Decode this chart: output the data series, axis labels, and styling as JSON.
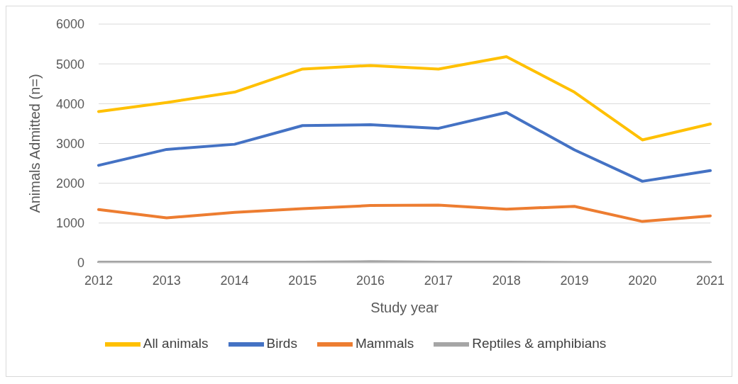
{
  "chart_data": {
    "type": "line",
    "xlabel": "Study year",
    "ylabel": "Animals Admitted (n=)",
    "categories": [
      "2012",
      "2013",
      "2014",
      "2015",
      "2016",
      "2017",
      "2018",
      "2019",
      "2020",
      "2021"
    ],
    "series": [
      {
        "name": "All animals",
        "color": "#ffc000",
        "values": [
          3800,
          4030,
          4290,
          4870,
          4960,
          4870,
          5180,
          4290,
          3090,
          3490
        ]
      },
      {
        "name": "Birds",
        "color": "#4472c4",
        "values": [
          2450,
          2850,
          2980,
          3450,
          3470,
          3380,
          3780,
          2840,
          2050,
          2320
        ]
      },
      {
        "name": "Mammals",
        "color": "#ed7d31",
        "values": [
          1340,
          1130,
          1270,
          1360,
          1440,
          1450,
          1350,
          1420,
          1040,
          1180
        ]
      },
      {
        "name": "Reptiles & amphibians",
        "color": "#a5a5a5",
        "values": [
          20,
          20,
          20,
          20,
          30,
          20,
          20,
          10,
          10,
          10
        ]
      }
    ],
    "ylim": [
      0,
      6000
    ],
    "yticks": [
      0,
      1000,
      2000,
      3000,
      4000,
      5000,
      6000
    ],
    "grid": "y",
    "legend": "bottom",
    "marker": "none",
    "line_style": "solid"
  }
}
